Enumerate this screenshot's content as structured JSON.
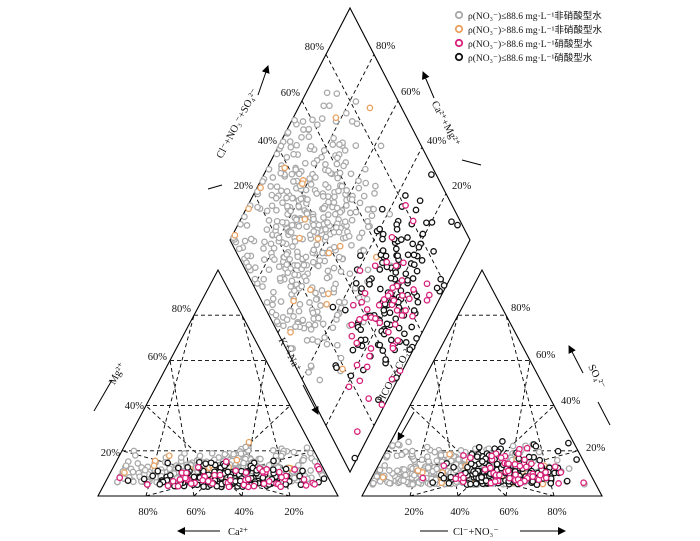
{
  "chart_data": {
    "type": "scatter",
    "subtype": "piper-trilinear",
    "legend_position": "top-right",
    "series": [
      {
        "name": "ρ(NO₃⁻)≤88.6 mg·L⁻¹非硝酸型水",
        "color": "#a8a8a8",
        "count": 950
      },
      {
        "name": "ρ(NO₃⁻)>88.6 mg·L⁻¹非硝酸型水",
        "color": "#e8a060",
        "count": 45
      },
      {
        "name": "ρ(NO₃⁻)>88.6 mg·L⁻¹硝酸型水",
        "color": "#d8207a",
        "count": 120
      },
      {
        "name": "ρ(NO₃⁻)≤88.6 mg·L⁻¹硝酸型水",
        "color": "#111111",
        "count": 330
      }
    ],
    "cation_triangle": {
      "ticks_left": [
        "20%",
        "40%",
        "60%",
        "80%"
      ],
      "ticks_bottom": [
        "80%",
        "60%",
        "40%",
        "20%"
      ],
      "axis_left": "Mg²⁺",
      "axis_bottom": "Ca²⁺",
      "axis_right": "K⁺+Na⁺"
    },
    "anion_triangle": {
      "ticks_right": [
        "20%",
        "40%",
        "60%",
        "80%"
      ],
      "ticks_bottom": [
        "20%",
        "40%",
        "60%",
        "80%"
      ],
      "axis_left": "HCO₃⁻+CO₃²⁻",
      "axis_bottom": "Cl⁻+NO₃⁻",
      "axis_right": "SO₄²⁻"
    },
    "diamond": {
      "ticks_left": [
        "20%",
        "40%",
        "60%",
        "80%"
      ],
      "ticks_right": [
        "20%",
        "40%",
        "60%",
        "80%"
      ],
      "axis_left": "Cl⁻+NO₃⁻+SO₄²⁻",
      "axis_right": "Ca²⁺+Mg²⁺"
    }
  }
}
